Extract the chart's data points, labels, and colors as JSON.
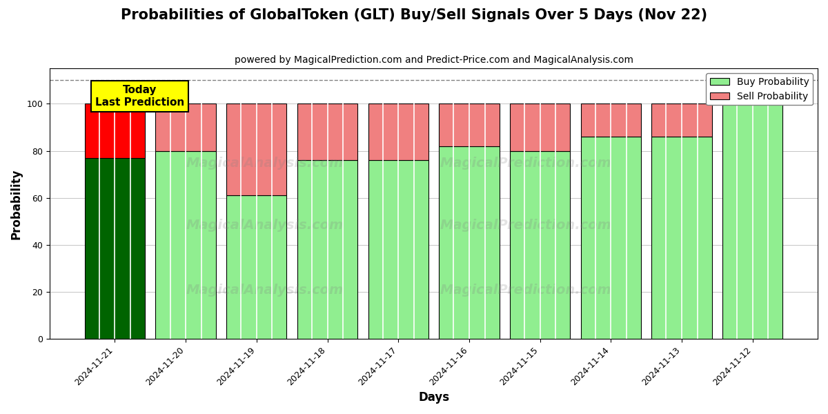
{
  "title": "Probabilities of GlobalToken (GLT) Buy/Sell Signals Over 5 Days (Nov 22)",
  "subtitle": "powered by MagicalPrediction.com and Predict-Price.com and MagicalAnalysis.com",
  "xlabel": "Days",
  "ylabel": "Probability",
  "dates": [
    "2024-11-21",
    "2024-11-20",
    "2024-11-19",
    "2024-11-18",
    "2024-11-17",
    "2024-11-16",
    "2024-11-15",
    "2024-11-14",
    "2024-11-13",
    "2024-11-12"
  ],
  "buy_values": [
    77,
    80,
    61,
    76,
    76,
    82,
    80,
    86,
    86,
    100
  ],
  "sell_values": [
    23,
    20,
    39,
    24,
    24,
    18,
    20,
    14,
    14,
    0
  ],
  "today_bar_buy_color": "#006400",
  "today_bar_sell_color": "#FF0000",
  "normal_bar_buy_color": "#90EE90",
  "normal_bar_sell_color": "#F08080",
  "today_annotation_bg": "#FFFF00",
  "today_annotation_text": "Today\nLast Prediction",
  "legend_buy_label": "Buy Probability",
  "legend_sell_label": "Sell Probability",
  "ylim": [
    0,
    115
  ],
  "yticks": [
    0,
    20,
    40,
    60,
    80,
    100
  ],
  "dashed_line_y": 110,
  "bg_color": "#FFFFFF",
  "grid_color": "#BBBBBB",
  "title_fontsize": 15,
  "subtitle_fontsize": 10,
  "axis_label_fontsize": 12,
  "tick_fontsize": 9,
  "bar_width": 0.85
}
